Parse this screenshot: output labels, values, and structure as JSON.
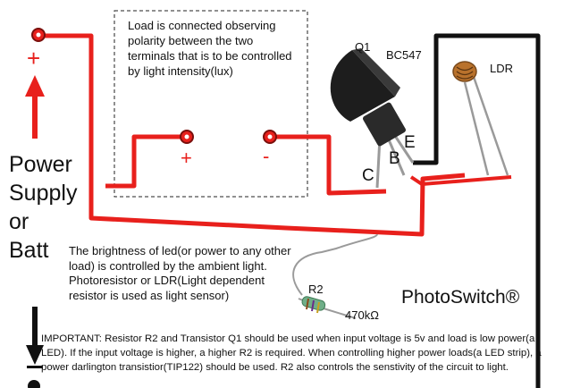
{
  "load_note": "Load is connected observing polarity between the two terminals that is to be controlled by light intensity(lux)",
  "supply_label": [
    "Power",
    "Supply",
    "or",
    "Batt"
  ],
  "plus_sign": "+",
  "minus_sign": "-",
  "load_plus": "+",
  "load_minus": "-",
  "transistor": {
    "ref": "Q1",
    "part": "BC547",
    "pin_c": "C",
    "pin_b": "B",
    "pin_e": "E"
  },
  "ldr_label": "LDR",
  "resistor": {
    "ref": "R2",
    "value": "470kΩ"
  },
  "description": "The brightness of led(or power to any other load) is controlled by the ambient light. Photoresistor or LDR(Light dependent resistor is used as light sensor)",
  "important": {
    "heading": "IMPORTANT:",
    "text": "Resistor R2 and Transistor Q1 should be used when input voltage is 5v and load is low power(a LED). If the input voltage is higher, a higher R2 is required. When controlling higher power loads(a LED strip), a power darlington transistior(TIP122) should be used. R2 also controls the senstivity of the circuit to light."
  },
  "brand": "PhotoSwitch®",
  "colors": {
    "positive_wire": "#e8201c",
    "negative_wire": "#111111",
    "ldr_body": "#b9722c",
    "resistor_body": "#6fae88"
  }
}
